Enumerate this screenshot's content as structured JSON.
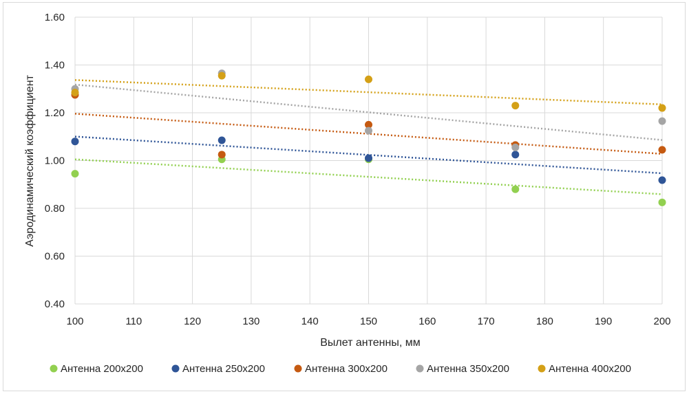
{
  "chart_data": {
    "type": "scatter",
    "title": "",
    "xlabel": "Вылет антенны, мм",
    "ylabel": "Аэродинамический коэффициент",
    "xlim": [
      100,
      200
    ],
    "ylim": [
      0.4,
      1.6
    ],
    "xticks": [
      100,
      110,
      120,
      130,
      140,
      150,
      160,
      170,
      180,
      190,
      200
    ],
    "xtick_labels": [
      "100",
      "110",
      "120",
      "130",
      "140",
      "150",
      "160",
      "170",
      "180",
      "190",
      "200"
    ],
    "yticks": [
      0.4,
      0.6,
      0.8,
      1.0,
      1.2,
      1.4,
      1.6
    ],
    "ytick_labels": [
      "0.40",
      "0.60",
      "0.80",
      "1.00",
      "1.20",
      "1.40",
      "1.60"
    ],
    "grid": true,
    "legend_position": "bottom",
    "trendline": "linear, dotted",
    "x": [
      100,
      125,
      150,
      175,
      200
    ],
    "series": [
      {
        "name": "Антенна 200х200",
        "color": "#92d050",
        "values": [
          0.945,
          1.005,
          1.005,
          0.88,
          0.825
        ]
      },
      {
        "name": "Антенна 250х200",
        "color": "#2f5597",
        "values": [
          1.08,
          1.085,
          1.01,
          1.025,
          0.918
        ]
      },
      {
        "name": "Антенна 300х200",
        "color": "#c55a11",
        "values": [
          1.275,
          1.025,
          1.15,
          1.065,
          1.045
        ]
      },
      {
        "name": "Антенна 350х200",
        "color": "#a5a5a5",
        "values": [
          1.3,
          1.365,
          1.125,
          1.055,
          1.165
        ]
      },
      {
        "name": "Антенна 400х200",
        "color": "#d4a017",
        "values": [
          1.285,
          1.355,
          1.34,
          1.23,
          1.22
        ]
      }
    ]
  }
}
